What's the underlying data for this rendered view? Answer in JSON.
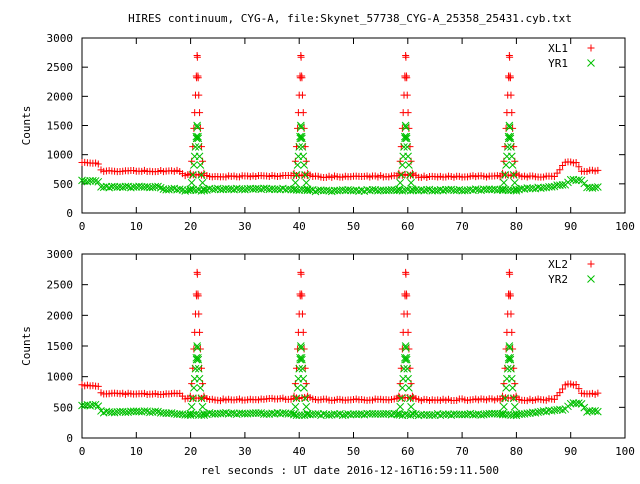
{
  "title": "HIRES continuum, CYG-A, file:Skynet_57738_CYG-A_25358_25431.cyb.txt",
  "xlabel": "rel seconds : UT date 2016-12-16T16:59:11.500",
  "colors": {
    "red": "#ff0000",
    "green": "#00c000"
  },
  "chart_data": [
    {
      "type": "scatter",
      "ylabel": "Counts",
      "xlim": [
        0,
        100
      ],
      "ylim": [
        0,
        3000
      ],
      "xticks": [
        0,
        10,
        20,
        30,
        40,
        50,
        60,
        70,
        80,
        90,
        100
      ],
      "yticks": [
        0,
        500,
        1000,
        1500,
        2000,
        2500,
        3000
      ],
      "legend_position": "top-right",
      "grid": false,
      "series": [
        {
          "name": "XL1",
          "marker": "plus",
          "color": "#ff0000",
          "baseline": [
            [
              0,
              860
            ],
            [
              3,
              850
            ],
            [
              3.6,
              720
            ],
            [
              18,
              720
            ],
            [
              19,
              650
            ],
            [
              20,
              650
            ],
            [
              22.5,
              650
            ],
            [
              23.5,
              620
            ],
            [
              38.5,
              640
            ],
            [
              39.5,
              650
            ],
            [
              42,
              650
            ],
            [
              43,
              620
            ],
            [
              57.5,
              630
            ],
            [
              58.5,
              650
            ],
            [
              61,
              650
            ],
            [
              62,
              620
            ],
            [
              77,
              630
            ],
            [
              77.5,
              650
            ],
            [
              80,
              650
            ],
            [
              81,
              620
            ],
            [
              87,
              630
            ],
            [
              89,
              870
            ],
            [
              91,
              870
            ],
            [
              92,
              720
            ],
            [
              95,
              720
            ]
          ],
          "peaks": [
            [
              21.2,
              2700
            ],
            [
              40.3,
              2700
            ],
            [
              59.6,
              2700
            ],
            [
              78.7,
              2700
            ]
          ]
        },
        {
          "name": "YR1",
          "marker": "cross",
          "color": "#00c000",
          "baseline": [
            [
              0,
              550
            ],
            [
              3,
              540
            ],
            [
              3.6,
              440
            ],
            [
              14,
              450
            ],
            [
              15,
              410
            ],
            [
              18,
              410
            ],
            [
              19,
              390
            ],
            [
              20,
              390
            ],
            [
              22.5,
              390
            ],
            [
              23.5,
              410
            ],
            [
              38.5,
              410
            ],
            [
              39.5,
              390
            ],
            [
              42,
              390
            ],
            [
              43,
              380
            ],
            [
              57.5,
              390
            ],
            [
              58.5,
              390
            ],
            [
              61,
              390
            ],
            [
              62,
              390
            ],
            [
              77,
              400
            ],
            [
              77.5,
              390
            ],
            [
              80,
              390
            ],
            [
              81,
              410
            ],
            [
              85,
              440
            ],
            [
              89,
              480
            ],
            [
              90,
              570
            ],
            [
              92,
              570
            ],
            [
              93,
              440
            ],
            [
              95,
              440
            ]
          ],
          "peaks": [
            [
              21.2,
              1500
            ],
            [
              40.3,
              1500
            ],
            [
              59.6,
              1500
            ],
            [
              78.7,
              1500
            ]
          ]
        }
      ]
    },
    {
      "type": "scatter",
      "ylabel": "Counts",
      "xlim": [
        0,
        100
      ],
      "ylim": [
        0,
        3000
      ],
      "xticks": [
        0,
        10,
        20,
        30,
        40,
        50,
        60,
        70,
        80,
        90,
        100
      ],
      "yticks": [
        0,
        500,
        1000,
        1500,
        2000,
        2500,
        3000
      ],
      "legend_position": "top-right",
      "grid": false,
      "series": [
        {
          "name": "XL2",
          "marker": "plus",
          "color": "#ff0000",
          "baseline": [
            [
              0,
              860
            ],
            [
              3,
              850
            ],
            [
              3.6,
              720
            ],
            [
              18,
              720
            ],
            [
              19,
              650
            ],
            [
              20,
              650
            ],
            [
              22.5,
              650
            ],
            [
              23.5,
              620
            ],
            [
              38.5,
              640
            ],
            [
              39.5,
              650
            ],
            [
              42,
              650
            ],
            [
              43,
              620
            ],
            [
              57.5,
              630
            ],
            [
              58.5,
              650
            ],
            [
              61,
              650
            ],
            [
              62,
              620
            ],
            [
              77,
              630
            ],
            [
              77.5,
              650
            ],
            [
              80,
              650
            ],
            [
              81,
              620
            ],
            [
              87,
              630
            ],
            [
              89,
              870
            ],
            [
              91,
              870
            ],
            [
              92,
              720
            ],
            [
              95,
              720
            ]
          ],
          "peaks": [
            [
              21.2,
              2700
            ],
            [
              40.3,
              2700
            ],
            [
              59.6,
              2700
            ],
            [
              78.7,
              2700
            ]
          ]
        },
        {
          "name": "YR2",
          "marker": "cross",
          "color": "#00c000",
          "baseline": [
            [
              0,
              540
            ],
            [
              3,
              530
            ],
            [
              3.6,
              420
            ],
            [
              14,
              430
            ],
            [
              15,
              400
            ],
            [
              18,
              400
            ],
            [
              19,
              380
            ],
            [
              20,
              380
            ],
            [
              22.5,
              380
            ],
            [
              23.5,
              400
            ],
            [
              38.5,
              400
            ],
            [
              39.5,
              380
            ],
            [
              42,
              380
            ],
            [
              43,
              380
            ],
            [
              57.5,
              390
            ],
            [
              58.5,
              380
            ],
            [
              61,
              380
            ],
            [
              62,
              380
            ],
            [
              77,
              390
            ],
            [
              77.5,
              380
            ],
            [
              80,
              380
            ],
            [
              81,
              400
            ],
            [
              85,
              430
            ],
            [
              89,
              470
            ],
            [
              90,
              560
            ],
            [
              92,
              560
            ],
            [
              93,
              430
            ],
            [
              95,
              430
            ]
          ],
          "peaks": [
            [
              21.2,
              1500
            ],
            [
              40.3,
              1500
            ],
            [
              59.6,
              1500
            ],
            [
              78.7,
              1500
            ]
          ]
        }
      ]
    }
  ]
}
